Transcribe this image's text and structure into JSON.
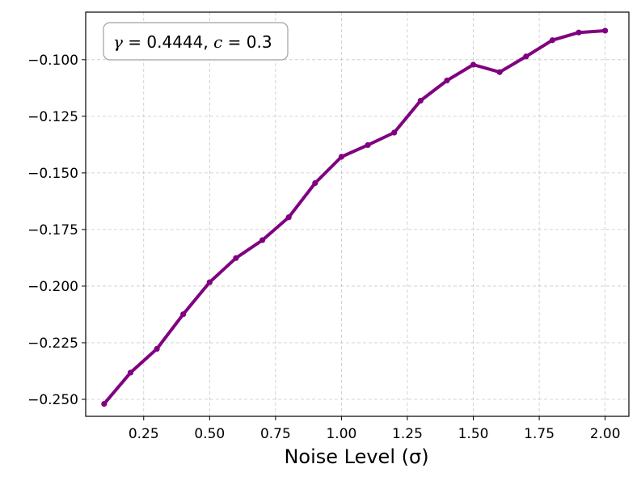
{
  "chart_data": {
    "type": "line",
    "title": "",
    "xlabel": "Noise Level (σ)",
    "ylabel": "",
    "annotation": {
      "gamma_symbol": "γ",
      "gamma_value": " = 0.4444, ",
      "c_symbol": "c",
      "c_value": " = 0.3"
    },
    "xlim": [
      0.03,
      2.09
    ],
    "ylim": [
      -0.2575,
      -0.079
    ],
    "x_ticks": [
      0.25,
      0.5,
      0.75,
      1.0,
      1.25,
      1.5,
      1.75,
      2.0
    ],
    "x_tick_labels": [
      "0.25",
      "0.50",
      "0.75",
      "1.00",
      "1.25",
      "1.50",
      "1.75",
      "2.00"
    ],
    "y_ticks": [
      -0.25,
      -0.225,
      -0.2,
      -0.175,
      -0.15,
      -0.125,
      -0.1
    ],
    "y_tick_labels": [
      "−0.250",
      "−0.225",
      "−0.200",
      "−0.175",
      "−0.150",
      "−0.125",
      "−0.100"
    ],
    "grid": true,
    "series": [
      {
        "color": "#800080",
        "x": [
          0.1,
          0.2,
          0.3,
          0.4,
          0.5,
          0.6,
          0.7,
          0.8,
          0.9,
          1.0,
          1.1,
          1.2,
          1.3,
          1.4,
          1.5,
          1.6,
          1.7,
          1.8,
          1.9,
          2.0
        ],
        "y": [
          -0.252,
          -0.2382,
          -0.2277,
          -0.2124,
          -0.1983,
          -0.1876,
          -0.1797,
          -0.1696,
          -0.1545,
          -0.1429,
          -0.1377,
          -0.1322,
          -0.1181,
          -0.1092,
          -0.1022,
          -0.1055,
          -0.0986,
          -0.0914,
          -0.088,
          -0.0872
        ]
      }
    ]
  }
}
